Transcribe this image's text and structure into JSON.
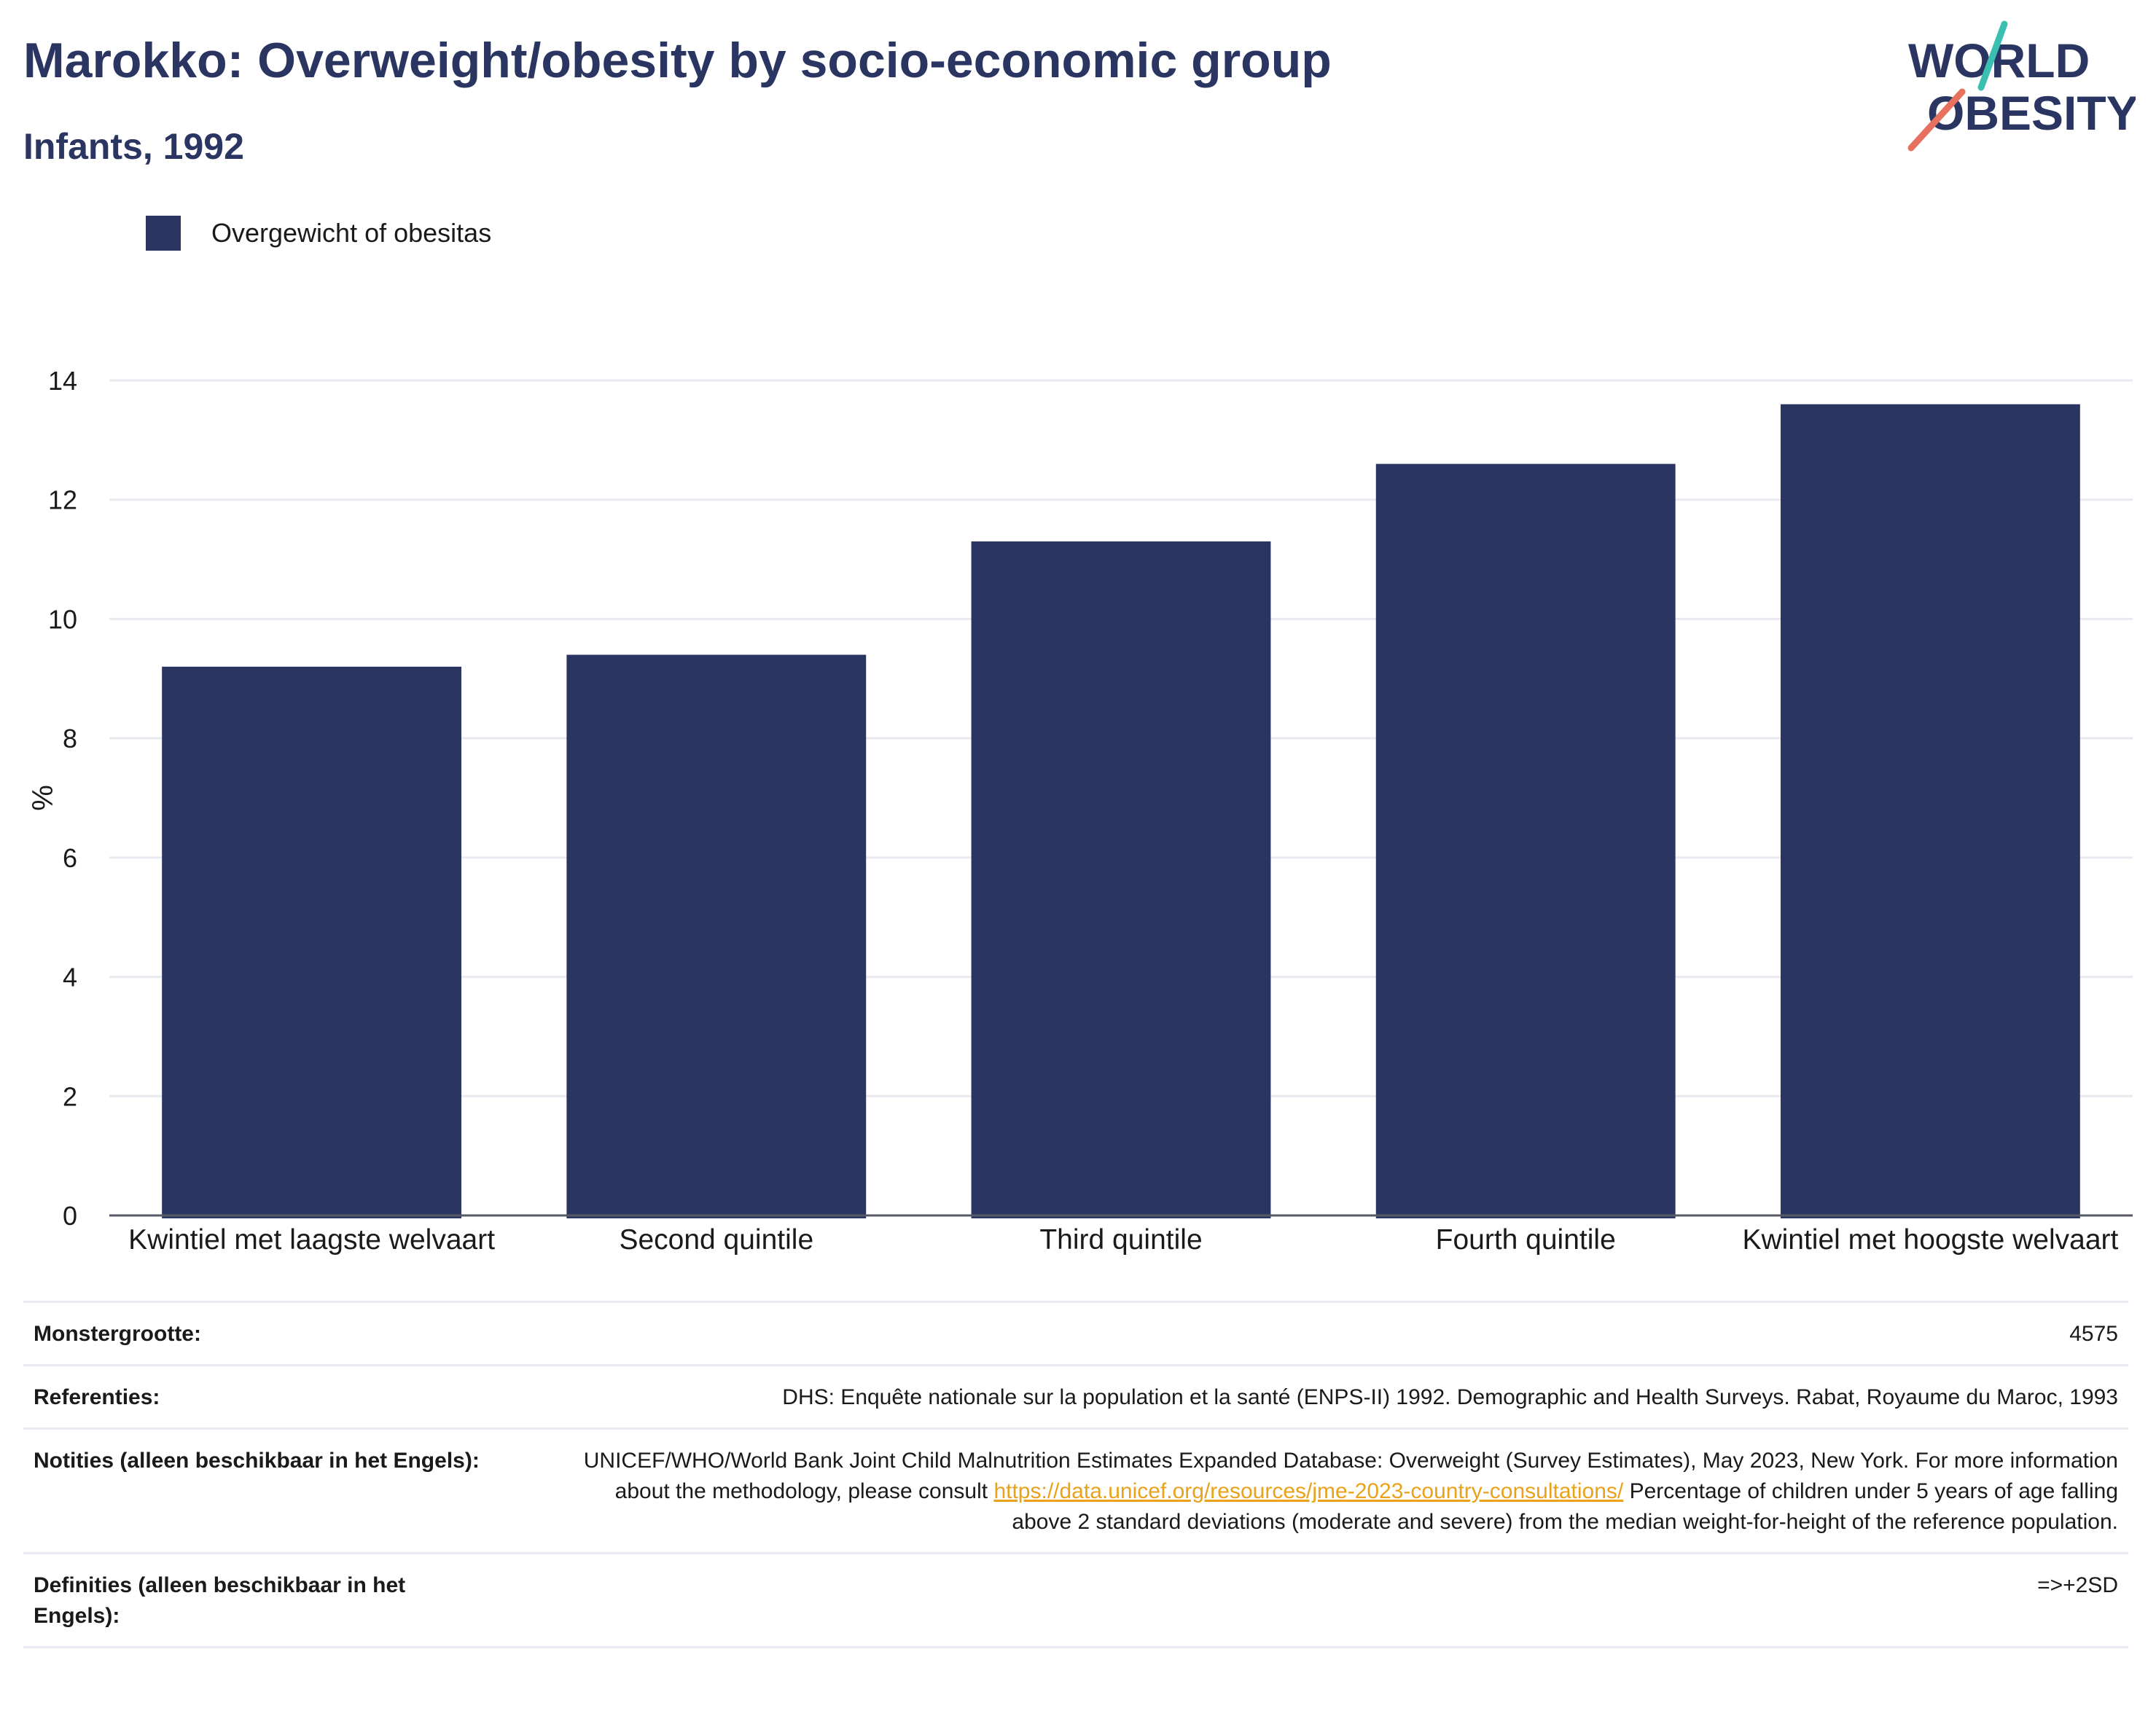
{
  "header": {
    "title": "Marokko: Overweight/obesity by socio-economic group",
    "subtitle": "Infants, 1992"
  },
  "logo": {
    "line1": "WORLD",
    "line2": "OBESITY",
    "accent_teal": "#3bbfb0",
    "accent_coral": "#e8705f"
  },
  "legend": {
    "label": "Overgewicht of obesitas"
  },
  "colors": {
    "bar": "#2a3561",
    "title": "#2a3561",
    "link": "#e9a21a"
  },
  "chart_data": {
    "type": "bar",
    "categories": [
      "Kwintiel met laagste welvaart",
      "Second quintile",
      "Third quintile",
      "Fourth quintile",
      "Kwintiel met hoogste welvaart"
    ],
    "series": [
      {
        "name": "Overgewicht of obesitas",
        "values": [
          9.2,
          9.4,
          11.3,
          12.6,
          13.6
        ]
      }
    ],
    "ylabel": "%",
    "ylim": [
      0,
      14
    ],
    "yticks": [
      0,
      2,
      4,
      6,
      8,
      10,
      12,
      14
    ],
    "grid": true,
    "legend_position": "top-left"
  },
  "table": {
    "sample": {
      "label": "Monstergrootte:",
      "value": "4575"
    },
    "references": {
      "label": "Referenties:",
      "value": "DHS: Enquête nationale sur la population et la santé (ENPS-II) 1992. Demographic and Health Surveys. Rabat, Royaume du Maroc, 1993"
    },
    "notes": {
      "label": "Notities (alleen beschikbaar in het Engels):",
      "text_before": "UNICEF/WHO/World Bank Joint Child Malnutrition Estimates Expanded Database: Overweight (Survey Estimates), May 2023, New York. For more information about the methodology, please consult ",
      "link": "https://data.unicef.org/resources/jme-2023-country-consultations/",
      "text_after": " Percentage of children under 5 years of age falling above 2 standard deviations (moderate and severe) from the median weight-for-height of the reference population."
    },
    "definitions": {
      "label": "Definities (alleen beschikbaar in het Engels):",
      "value": "=>+2SD"
    }
  }
}
